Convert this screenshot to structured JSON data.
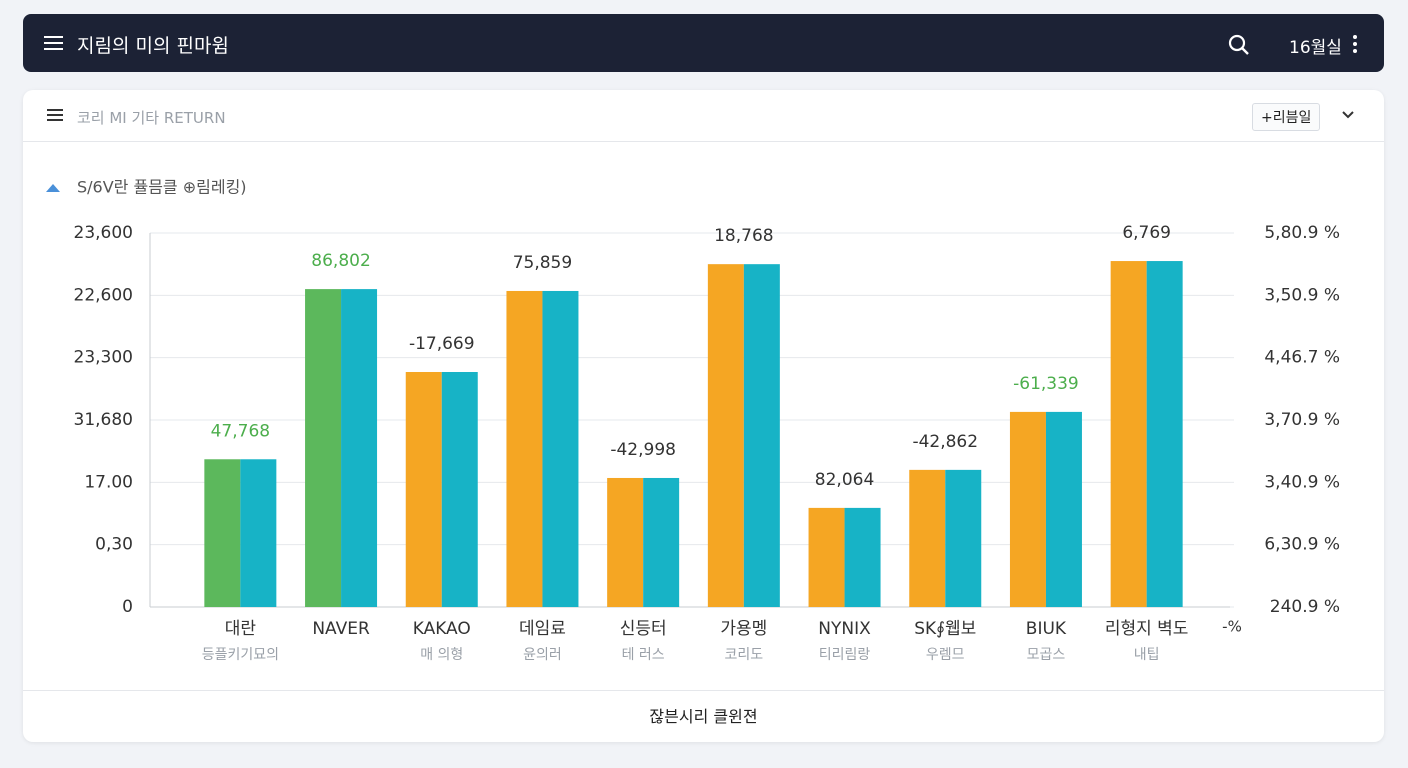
{
  "header": {
    "title": "지림의 미의 핀마윔",
    "right_text": "16월실"
  },
  "toolbar": {
    "title": "코리 MI 기타 RETURN",
    "button": "+리븜일"
  },
  "footer": {
    "text": "잖븐시리 클윈젼"
  },
  "chart_data": {
    "type": "bar",
    "title": "S/6V란 퓰믐클 ⊕림레킹)",
    "categories": [
      "대란",
      "NAVER",
      "KAKAO",
      "데임료",
      "신등터",
      "가용멩",
      "NYNIX",
      "SK∮웹보",
      "BIUK",
      "리형지 벽도"
    ],
    "subcategories": [
      "등플키기묘의",
      null,
      "매 의형",
      "윤의러",
      "테 러스",
      "코리도",
      "티리림랑",
      "우렘므",
      "모곱스",
      "내팁"
    ],
    "x_unit_label": "-%",
    "annotations": [
      "47,768",
      "86,802",
      "-17,669",
      "75,859",
      "-42,998",
      "18,768",
      "82,064",
      "-42,862",
      "-61,339",
      "6,769"
    ],
    "annotation_colors": [
      "#4cae4c",
      "#4cae4c",
      "#333333",
      "#333333",
      "#333333",
      "#333333",
      "#333333",
      "#333333",
      "#4cae4c",
      "#333333"
    ],
    "series": [
      {
        "colors": [
          "#5cb85c",
          "#5cb85c",
          "#f5a623",
          "#f5a623",
          "#f5a623",
          "#f5a623",
          "#f5a623",
          "#f5a623",
          "#f5a623",
          "#f5a623"
        ],
        "values": [
          2.37,
          5.1,
          3.77,
          5.07,
          2.07,
          5.5,
          1.59,
          2.2,
          3.13,
          5.55
        ]
      },
      {
        "color": "#17b3c6",
        "values": [
          2.37,
          5.1,
          3.77,
          5.07,
          2.07,
          5.5,
          1.59,
          2.2,
          3.13,
          5.55
        ]
      }
    ],
    "ylim": [
      0,
      6
    ],
    "yticks": [
      {
        "value": 0,
        "label": "0"
      },
      {
        "value": 1,
        "label": "0,30"
      },
      {
        "value": 2,
        "label": "17.00"
      },
      {
        "value": 3,
        "label": "31,680"
      },
      {
        "value": 4,
        "label": "23,300"
      },
      {
        "value": 5,
        "label": "22,600"
      },
      {
        "value": 6,
        "label": "23,600"
      }
    ],
    "y2lim": [
      0,
      6
    ],
    "y2ticks": [
      {
        "value": 0,
        "label": "240.9 %"
      },
      {
        "value": 1,
        "label": "6,30.9 %"
      },
      {
        "value": 2,
        "label": "3,40.9 %"
      },
      {
        "value": 3,
        "label": "3,70.9 %"
      },
      {
        "value": 4,
        "label": "4,46.7 %"
      },
      {
        "value": 5,
        "label": "3,50.9 %"
      },
      {
        "value": 6,
        "label": "5,80.9 %"
      }
    ],
    "grid": true
  }
}
